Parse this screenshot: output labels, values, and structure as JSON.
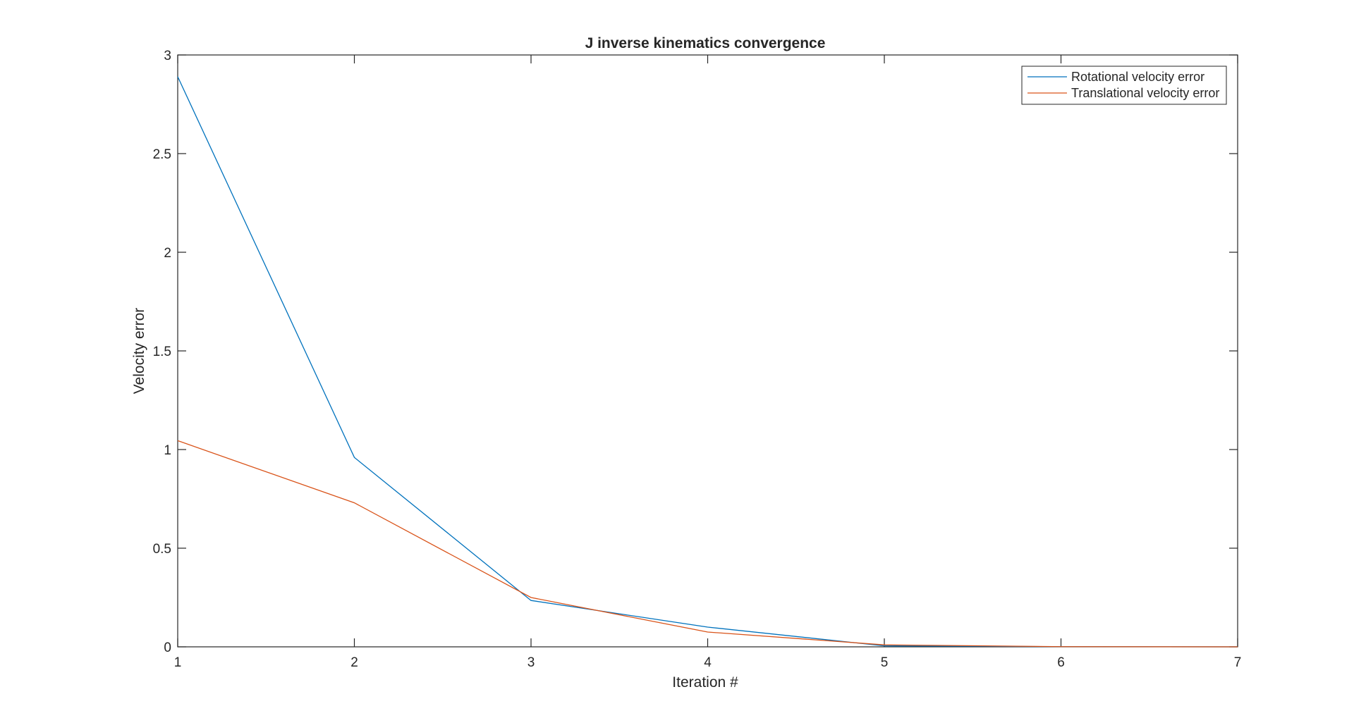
{
  "chart_data": {
    "type": "line",
    "title": "J inverse kinematics convergence",
    "xlabel": "Iteration #",
    "ylabel": "Velocity error",
    "xlim": [
      1,
      7
    ],
    "ylim": [
      0,
      3
    ],
    "xticks": [
      1,
      2,
      3,
      4,
      5,
      6,
      7
    ],
    "yticks": [
      0,
      0.5,
      1,
      1.5,
      2,
      2.5,
      3
    ],
    "grid": false,
    "legend_position": "top-right",
    "x": [
      1,
      2,
      3,
      4,
      5,
      6,
      7
    ],
    "series": [
      {
        "name": "Rotational velocity error",
        "color": "#0072BD",
        "values": [
          2.89,
          0.96,
          0.235,
          0.1,
          0.005,
          0.001,
          0.0
        ]
      },
      {
        "name": "Translational velocity error",
        "color": "#D95319",
        "values": [
          1.045,
          0.73,
          0.25,
          0.075,
          0.01,
          0.001,
          0.0
        ]
      }
    ]
  }
}
